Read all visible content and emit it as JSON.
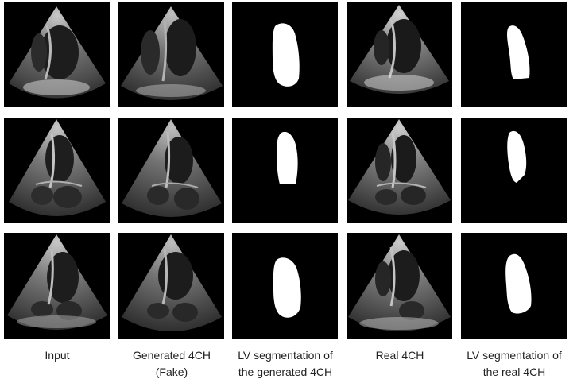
{
  "figure": {
    "columns": [
      {
        "key": "input",
        "label_line1": "Input",
        "label_line2": ""
      },
      {
        "key": "generated",
        "label_line1": "Generated 4CH",
        "label_line2": "(Fake)"
      },
      {
        "key": "seg_generated",
        "label_line1": "LV segmentation of",
        "label_line2": "the generated 4CH"
      },
      {
        "key": "real",
        "label_line1": "Real 4CH",
        "label_line2": ""
      },
      {
        "key": "seg_real",
        "label_line1": "LV segmentation of",
        "label_line2": "the real 4CH"
      }
    ],
    "rows": 3,
    "colors": {
      "background": "#000000",
      "mask": "#ffffff",
      "tissue": "#9a9a9a",
      "caption_text": "#222222"
    }
  }
}
